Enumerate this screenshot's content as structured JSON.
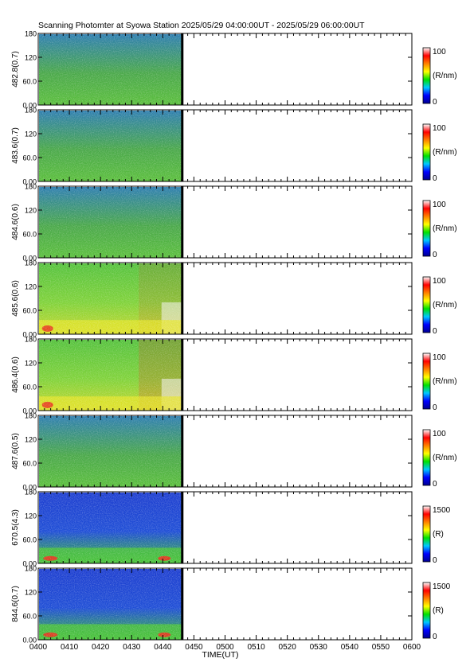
{
  "title": "Scanning Photomter at Syowa Station  2025/05/29 04:00:00UT - 2025/05/29 06:00:00UT",
  "colors": {
    "data_blue": "#2a4fd8",
    "data_green": "#4cc43a",
    "data_yellow": "#e7e62a",
    "data_red": "#e8321e",
    "data_white": "#f4f4f4",
    "axis": "#000000"
  },
  "chart_data": {
    "type": "heatmap",
    "xlabel": "TIME(UT)",
    "xlim": [
      "04:00",
      "06:00"
    ],
    "x_ticks": [
      "0400",
      "0410",
      "0420",
      "0430",
      "0440",
      "0450",
      "0500",
      "0510",
      "0520",
      "0530",
      "0540",
      "0550",
      "0600"
    ],
    "data_end": "04:46",
    "y_ticks": [
      "0.00",
      "60.0",
      "120",
      "180"
    ],
    "ylim": [
      0,
      180
    ],
    "colorbar_colors": [
      "#00008f",
      "#0000ff",
      "#00c8ff",
      "#00e000",
      "#ffff00",
      "#ff8000",
      "#ff0000",
      "#ffffff"
    ],
    "panels": [
      {
        "ylabel": "482.8(0.7)",
        "cbar_max": "100",
        "cbar_min": "0",
        "unit": "(R/nm)",
        "level": 0.3,
        "bottom_arc": 0.05
      },
      {
        "ylabel": "483.6(0.7)",
        "cbar_max": "100",
        "cbar_min": "0",
        "unit": "(R/nm)",
        "level": 0.36,
        "bottom_arc": 0.08
      },
      {
        "ylabel": "484.6(0.6)",
        "cbar_max": "100",
        "cbar_min": "0",
        "unit": "(R/nm)",
        "level": 0.4,
        "bottom_arc": 0.12
      },
      {
        "ylabel": "485.6(0.6)",
        "cbar_max": "100",
        "cbar_min": "0",
        "unit": "(R/nm)",
        "level": 0.48,
        "bottom_arc": 0.22
      },
      {
        "ylabel": "486.4(0.6)",
        "cbar_max": "100",
        "cbar_min": "0",
        "unit": "(R/nm)",
        "level": 0.56,
        "bottom_arc": 0.28
      },
      {
        "ylabel": "487.6(0.5)",
        "cbar_max": "100",
        "cbar_min": "0",
        "unit": "(R/nm)",
        "level": 0.38,
        "bottom_arc": 0.06
      },
      {
        "ylabel": "670.5(4.3)",
        "cbar_max": "1500",
        "cbar_min": "0",
        "unit": "(R)",
        "level": 0.15,
        "bottom_arc": 0.45
      },
      {
        "ylabel": "844.6(0.7)",
        "cbar_max": "1500",
        "cbar_min": "0",
        "unit": "(R)",
        "level": 0.15,
        "bottom_arc": 0.5
      }
    ]
  }
}
